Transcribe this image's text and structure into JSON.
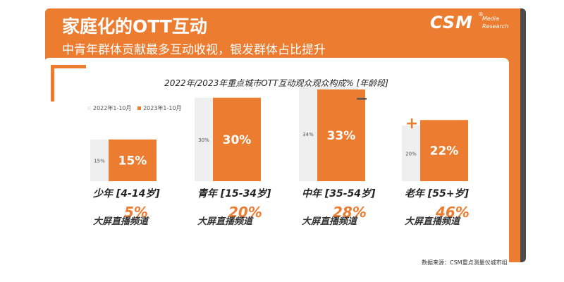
{
  "header": {
    "title": "家庭化的OTT互动",
    "subtitle": "中青年群体贡献最多互动收视，银发群体占比提升"
  },
  "logo": {
    "main": "CSM",
    "reg": "®",
    "sub1": "Media",
    "sub2": "Research"
  },
  "source": "数据来源：CSM重点测量仪城市组",
  "colors": {
    "accent": "#ec7c30",
    "prior": "#efefef",
    "dark": "#4a4a4a"
  },
  "chart_data": {
    "type": "bar",
    "title": "2022年/2023年重点城市OTT互动观众观众构成% [年龄段]",
    "ylim": [
      0,
      36
    ],
    "legend_position": "top-left",
    "categories": [
      "少年 [4-14岁]",
      "青年 [15-34岁]",
      "中年 [35-54岁]",
      "老年 [55+岁]"
    ],
    "series": [
      {
        "name": "2022年1-10月",
        "values": [
          15,
          30,
          34,
          20
        ],
        "labels": [
          "15%",
          "30%",
          "34%",
          "20%"
        ],
        "color": "#efefef"
      },
      {
        "name": "2023年1-10月",
        "values": [
          15,
          30,
          33,
          22
        ],
        "labels": [
          "15%",
          "30%",
          "33%",
          "22%"
        ],
        "color": "#ec7c30"
      }
    ],
    "comparison_label": "大屏直播频道",
    "comparison_values": [
      5,
      20,
      28,
      46
    ],
    "comparison_labels": [
      "5%",
      "20%",
      "28%",
      "46%"
    ],
    "change_marks": [
      "",
      "",
      "−",
      "+"
    ]
  }
}
